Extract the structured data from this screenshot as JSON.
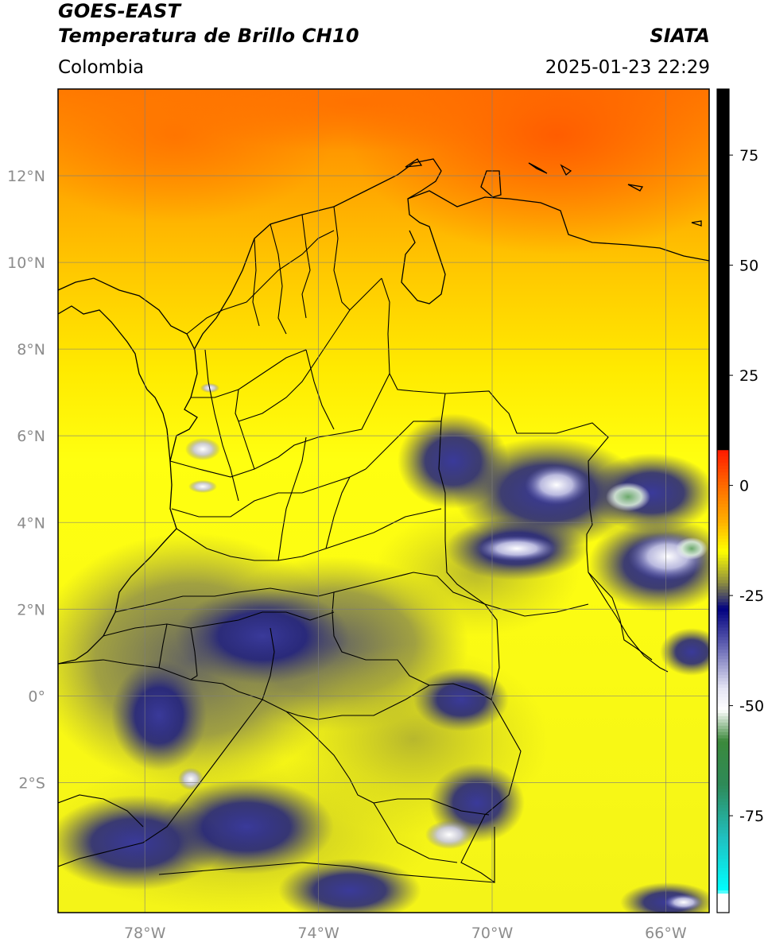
{
  "header": {
    "title_line1": "GOES-EAST",
    "title_line2": "Temperatura de Brillo CH10",
    "brand": "SIATA",
    "region": "Colombia",
    "timestamp": "2025-01-23 22:29"
  },
  "map": {
    "lat_ticks": [
      {
        "value": 12,
        "label": "12°N"
      },
      {
        "value": 10,
        "label": "10°N"
      },
      {
        "value": 8,
        "label": "8°N"
      },
      {
        "value": 6,
        "label": "6°N"
      },
      {
        "value": 4,
        "label": "4°N"
      },
      {
        "value": 2,
        "label": "2°N"
      },
      {
        "value": 0,
        "label": "0°"
      },
      {
        "value": -2,
        "label": "2°S"
      }
    ],
    "lon_ticks": [
      {
        "value": -78,
        "label": "78°W"
      },
      {
        "value": -74,
        "label": "74°W"
      },
      {
        "value": -70,
        "label": "70°W"
      },
      {
        "value": -66,
        "label": "66°W"
      }
    ],
    "extent": {
      "lon_min": -80,
      "lon_max": -65,
      "lat_min": -5,
      "lat_max": 14
    }
  },
  "colorbar": {
    "range": [
      -97,
      90
    ],
    "ticks": [
      {
        "value": 75,
        "label": "75"
      },
      {
        "value": 50,
        "label": "50"
      },
      {
        "value": 25,
        "label": "25"
      },
      {
        "value": 0,
        "label": "0"
      },
      {
        "value": -25,
        "label": "-25"
      },
      {
        "value": -50,
        "label": "-50"
      },
      {
        "value": -75,
        "label": "-75"
      }
    ],
    "stops": [
      {
        "value": 90,
        "color": "#000000"
      },
      {
        "value": 8,
        "color": "#000000"
      },
      {
        "value": 7.9,
        "color": "#ff1a00"
      },
      {
        "value": 0,
        "color": "#ff6a00"
      },
      {
        "value": -8,
        "color": "#ffae00"
      },
      {
        "value": -15,
        "color": "#ffff00"
      },
      {
        "value": -22,
        "color": "#8f8f3e"
      },
      {
        "value": -26,
        "color": "#383870"
      },
      {
        "value": -28,
        "color": "#000080"
      },
      {
        "value": -37,
        "color": "#6a6ab6"
      },
      {
        "value": -46,
        "color": "#e4e4f4"
      },
      {
        "value": -51,
        "color": "#ffffff"
      },
      {
        "value": -58,
        "color": "#3c8a3c"
      },
      {
        "value": -68,
        "color": "#2e8a58"
      },
      {
        "value": -80,
        "color": "#20c0c0"
      },
      {
        "value": -92,
        "color": "#00ffff"
      },
      {
        "value": -93,
        "color": "#ffffff"
      },
      {
        "value": -97,
        "color": "#ffffff"
      }
    ]
  }
}
